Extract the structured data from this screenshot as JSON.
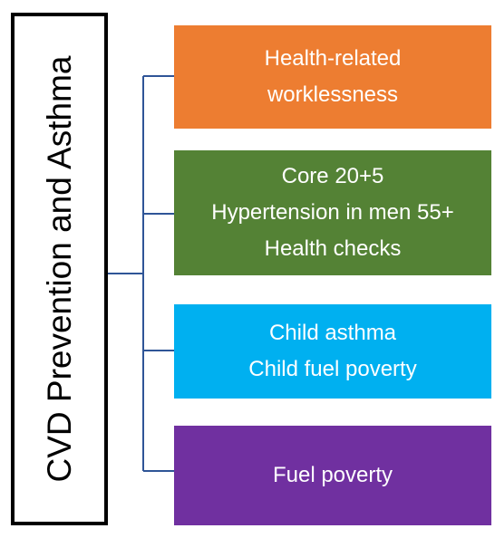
{
  "root": {
    "label": "CVD Prevention and Asthma"
  },
  "nodes": [
    {
      "lines": [
        "Health-related",
        "worklessness"
      ]
    },
    {
      "lines": [
        "Core 20+5",
        "Hypertension in men 55+",
        "Health checks"
      ]
    },
    {
      "lines": [
        "Child asthma",
        "Child fuel poverty"
      ]
    },
    {
      "lines": [
        "Fuel poverty"
      ]
    }
  ]
}
